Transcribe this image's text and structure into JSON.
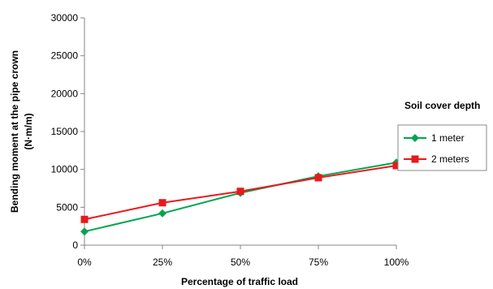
{
  "chart_data": {
    "type": "line",
    "categories": [
      "0%",
      "25%",
      "50%",
      "75%",
      "100%"
    ],
    "x": [
      0,
      25,
      50,
      75,
      100
    ],
    "series": [
      {
        "name": "1 meter",
        "values": [
          1800,
          4200,
          6900,
          9100,
          10900
        ],
        "color": "#00a550",
        "marker": "diamond"
      },
      {
        "name": "2 meters",
        "values": [
          3400,
          5600,
          7100,
          8900,
          10500
        ],
        "color": "#e8191c",
        "marker": "square"
      }
    ],
    "xlabel": "Percentage of traffic load",
    "ylabel_lines": [
      "Bending moment at the pipe crown",
      "(N·m/m)"
    ],
    "legend_title": "Soil cover depth",
    "ylim": [
      0,
      30000
    ],
    "yticks": [
      0,
      5000,
      10000,
      15000,
      20000,
      25000,
      30000
    ],
    "yticks_labels": [
      "0",
      "5000",
      "10000",
      "15000",
      "20000",
      "25000",
      "30000"
    ],
    "grid": false,
    "legend_position": "right"
  }
}
